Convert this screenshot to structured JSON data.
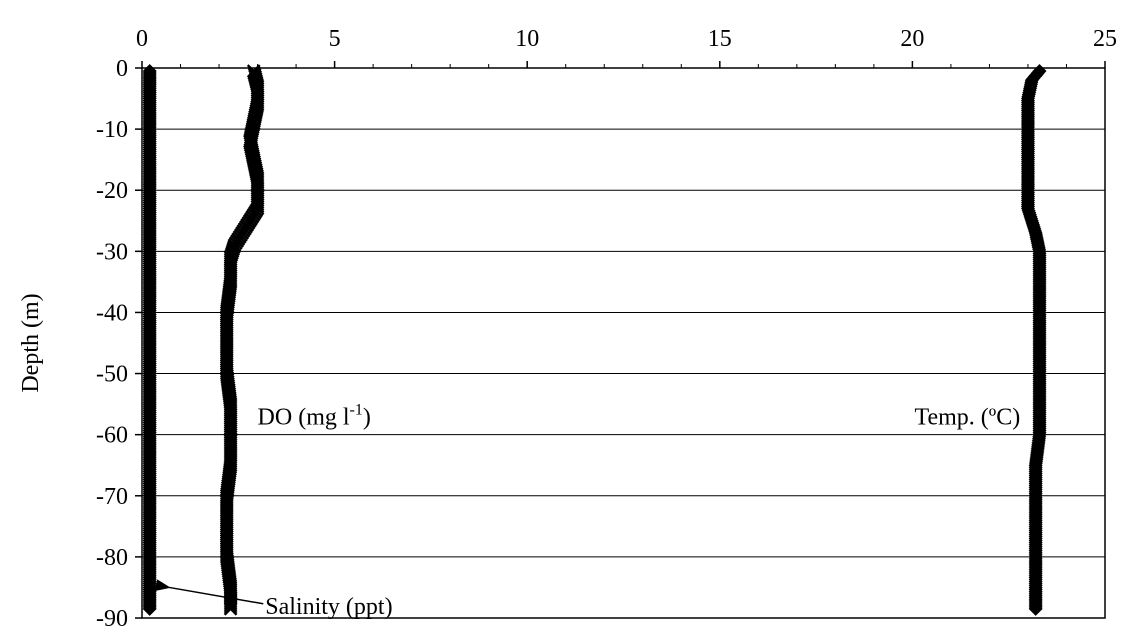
{
  "chart_data": {
    "type": "line",
    "title": "",
    "xlabel": "",
    "ylabel": "Depth (m)",
    "xlim": [
      0,
      25
    ],
    "ylim": [
      -90,
      0
    ],
    "x_ticks": [
      0,
      5,
      10,
      15,
      20,
      25
    ],
    "y_ticks": [
      0,
      -10,
      -20,
      -30,
      -40,
      -50,
      -60,
      -70,
      -80,
      -90
    ],
    "x_axis_position": "top",
    "grid": "horizontal",
    "legend": "none",
    "series": [
      {
        "key": "salinity",
        "marker": "diamond",
        "color": "#000000",
        "points": [
          {
            "x": 0.2,
            "y": -0.5
          },
          {
            "x": 0.2,
            "y": -5
          },
          {
            "x": 0.2,
            "y": -10
          },
          {
            "x": 0.2,
            "y": -15
          },
          {
            "x": 0.2,
            "y": -20
          },
          {
            "x": 0.2,
            "y": -25
          },
          {
            "x": 0.2,
            "y": -30
          },
          {
            "x": 0.2,
            "y": -35
          },
          {
            "x": 0.2,
            "y": -40
          },
          {
            "x": 0.2,
            "y": -45
          },
          {
            "x": 0.2,
            "y": -50
          },
          {
            "x": 0.2,
            "y": -55
          },
          {
            "x": 0.2,
            "y": -60
          },
          {
            "x": 0.2,
            "y": -65
          },
          {
            "x": 0.2,
            "y": -70
          },
          {
            "x": 0.2,
            "y": -75
          },
          {
            "x": 0.2,
            "y": -80
          },
          {
            "x": 0.2,
            "y": -85
          },
          {
            "x": 0.2,
            "y": -88.5
          }
        ]
      },
      {
        "key": "do",
        "marker": "x",
        "color": "#000000",
        "points": [
          {
            "x": 2.9,
            "y": -0.5
          },
          {
            "x": 3.0,
            "y": -3
          },
          {
            "x": 3.0,
            "y": -6
          },
          {
            "x": 2.9,
            "y": -9
          },
          {
            "x": 2.8,
            "y": -12
          },
          {
            "x": 2.9,
            "y": -15
          },
          {
            "x": 3.0,
            "y": -18
          },
          {
            "x": 3.0,
            "y": -21
          },
          {
            "x": 3.0,
            "y": -23
          },
          {
            "x": 2.8,
            "y": -25
          },
          {
            "x": 2.6,
            "y": -27
          },
          {
            "x": 2.4,
            "y": -29
          },
          {
            "x": 2.3,
            "y": -31
          },
          {
            "x": 2.3,
            "y": -35
          },
          {
            "x": 2.2,
            "y": -40
          },
          {
            "x": 2.2,
            "y": -45
          },
          {
            "x": 2.2,
            "y": -50
          },
          {
            "x": 2.3,
            "y": -55
          },
          {
            "x": 2.3,
            "y": -60
          },
          {
            "x": 2.3,
            "y": -65
          },
          {
            "x": 2.2,
            "y": -70
          },
          {
            "x": 2.2,
            "y": -75
          },
          {
            "x": 2.2,
            "y": -80
          },
          {
            "x": 2.3,
            "y": -85
          },
          {
            "x": 2.3,
            "y": -88.5
          }
        ]
      },
      {
        "key": "temp",
        "marker": "diamond",
        "color": "#000000",
        "points": [
          {
            "x": 23.3,
            "y": -0.5
          },
          {
            "x": 23.1,
            "y": -2
          },
          {
            "x": 23.0,
            "y": -5
          },
          {
            "x": 23.0,
            "y": -10
          },
          {
            "x": 23.0,
            "y": -15
          },
          {
            "x": 23.0,
            "y": -20
          },
          {
            "x": 23.0,
            "y": -23
          },
          {
            "x": 23.1,
            "y": -25
          },
          {
            "x": 23.2,
            "y": -27
          },
          {
            "x": 23.3,
            "y": -30
          },
          {
            "x": 23.3,
            "y": -35
          },
          {
            "x": 23.3,
            "y": -40
          },
          {
            "x": 23.3,
            "y": -45
          },
          {
            "x": 23.3,
            "y": -50
          },
          {
            "x": 23.3,
            "y": -55
          },
          {
            "x": 23.3,
            "y": -60
          },
          {
            "x": 23.2,
            "y": -65
          },
          {
            "x": 23.2,
            "y": -70
          },
          {
            "x": 23.2,
            "y": -75
          },
          {
            "x": 23.2,
            "y": -80
          },
          {
            "x": 23.2,
            "y": -85
          },
          {
            "x": 23.2,
            "y": -88.5
          }
        ]
      }
    ],
    "annotations": [
      {
        "key": "do",
        "text": "DO (mg l",
        "superscript": "-1",
        "suffix": ")",
        "x": 3.0,
        "y": -57
      },
      {
        "key": "temp",
        "text": "Temp. (ºC)",
        "x": 22.8,
        "y": -57
      },
      {
        "key": "salinity",
        "text": "Salinity (ppt)",
        "x": 3.2,
        "y": -88,
        "arrow_to": {
          "x": 0.5,
          "y": -85
        }
      }
    ]
  }
}
